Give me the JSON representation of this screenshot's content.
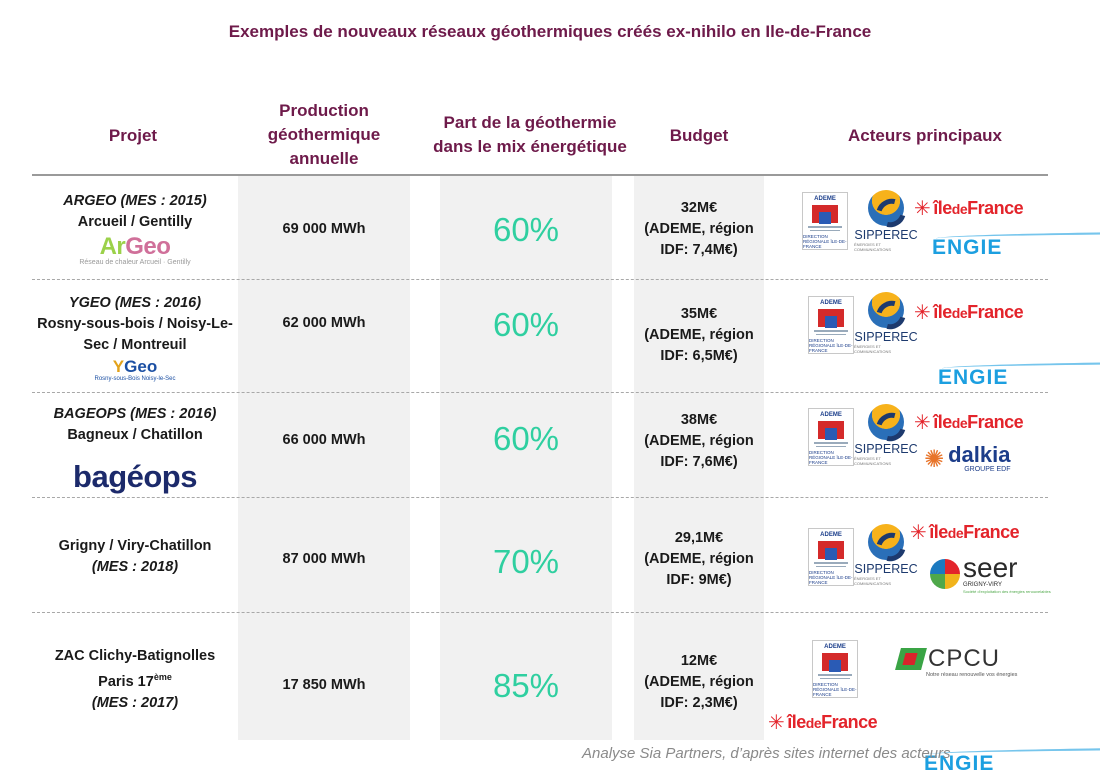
{
  "title": "Exemples de nouveaux réseaux géothermiques créés ex-nihilo en Ile-de-France",
  "headers": {
    "projet": "Projet",
    "production": [
      "Production",
      "géothermique",
      "annuelle"
    ],
    "part": [
      "Part de la géothermie",
      "dans le mix énergétique"
    ],
    "budget": "Budget",
    "acteurs": "Acteurs principaux"
  },
  "rows": [
    {
      "projet_lines": [
        "ARGEO (MES : 2015)",
        "Arcueil / Gentilly"
      ],
      "logo": {
        "main_a": "Ar",
        "main_b": "Geo",
        "sub": "Réseau de chaleur Arcueil · Gentilly"
      },
      "production": "69 000 MWh",
      "part": "60%",
      "budget_lines": [
        "32M€",
        "(ADEME, région",
        "IDF: 7,4M€)"
      ]
    },
    {
      "projet_lines": [
        "YGEO (MES : 2016)",
        "Rosny-sous-bois / Noisy-Le-",
        "Sec / Montreuil"
      ],
      "logo": {
        "main_a": "Y",
        "main_b": "Geo",
        "sub": "Rosny-sous-Bois Noisy-le-Sec"
      },
      "production": "62 000 MWh",
      "part": "60%",
      "budget_lines": [
        "35M€",
        "(ADEME, région",
        "IDF: 6,5M€)"
      ]
    },
    {
      "projet_lines": [
        "BAGEOPS (MES : 2016)",
        "Bagneux / Chatillon"
      ],
      "logo": {
        "main_a": "bagéops"
      },
      "production": "66 000 MWh",
      "part": "60%",
      "budget_lines": [
        "38M€",
        "(ADEME, région",
        "IDF: 7,6M€)"
      ]
    },
    {
      "projet_lines": [
        "Grigny / Viry-Chatillon",
        "(MES : 2018)"
      ],
      "production": "87 000 MWh",
      "part": "70%",
      "budget_lines": [
        "29,1M€",
        "(ADEME, région",
        "IDF: 9M€)"
      ]
    },
    {
      "projet_lines": [
        "ZAC Clichy-Batignolles",
        "Paris 17",
        "(MES : 2017)"
      ],
      "projet_sup": "ème",
      "production": "17 850 MWh",
      "part": "85%",
      "budget_lines": [
        "12M€",
        "(ADEME, région",
        "IDF: 2,3M€)"
      ]
    }
  ],
  "logos": {
    "ademe": {
      "name": "ADEME",
      "region": "DIRECTION RÉGIONALE ÎLE-DE-FRANCE"
    },
    "sipperec": {
      "name": "SIPPEREC",
      "sub": "ÉNERGIES ET COMMUNICATIONS"
    },
    "idf": {
      "a": "île",
      "b": "de",
      "c": "France"
    },
    "engie": "ENGIE",
    "dalkia": {
      "name": "dalkia",
      "sub": "GROUPE EDF"
    },
    "seer": {
      "name": "seer",
      "sub": "GRIGNY-VIRY",
      "sub2": "Société d'exploitation des énergies renouvelables"
    },
    "cpcu": {
      "name": "CPCU",
      "sub": "Notre réseau renouvelle vos énergies"
    }
  },
  "footer": "Analyse Sia Partners, d’après sites internet des acteurs"
}
